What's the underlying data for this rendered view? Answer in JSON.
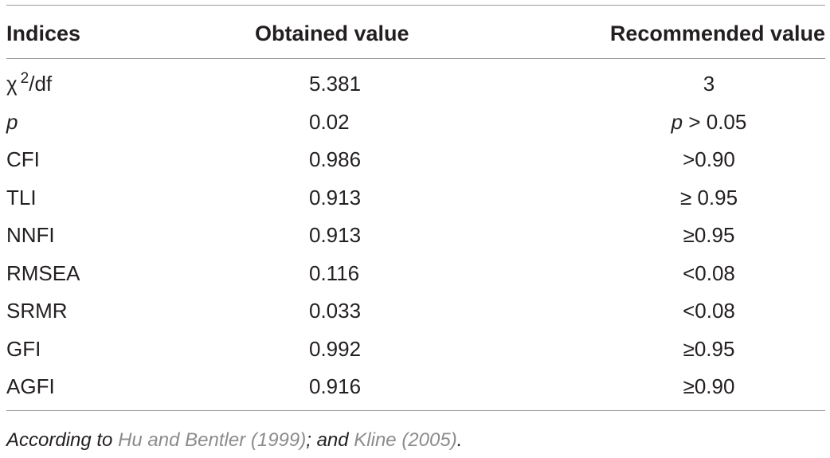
{
  "table": {
    "headers": {
      "indices": "Indices",
      "obtained": "Obtained value",
      "recommended": "Recommended value"
    },
    "rows": [
      {
        "index_base": "χ",
        "index_sup": "2",
        "index_suffix": "/df",
        "obtained": "5.381",
        "recommended": "3"
      },
      {
        "index": "p",
        "obtained": "0.02",
        "recommended_italic": "p",
        "recommended_rest": " > 0.05"
      },
      {
        "index": "CFI",
        "obtained": "0.986",
        "recommended": ">0.90"
      },
      {
        "index": "TLI",
        "obtained": "0.913",
        "recommended": "≥ 0.95"
      },
      {
        "index": "NNFI",
        "obtained": "0.913",
        "recommended": "≥0.95"
      },
      {
        "index": "RMSEA",
        "obtained": "0.116",
        "recommended": "<0.08"
      },
      {
        "index": "SRMR",
        "obtained": "0.033",
        "recommended": "<0.08"
      },
      {
        "index": "GFI",
        "obtained": "0.992",
        "recommended": "≥0.95"
      },
      {
        "index": "AGFI",
        "obtained": "0.916",
        "recommended": "≥0.90"
      }
    ]
  },
  "footnote": {
    "prefix": "According to ",
    "ref1": "Hu and Bentler (1999)",
    "middle": "; and ",
    "ref2": "Kline (2005)",
    "suffix": "."
  }
}
